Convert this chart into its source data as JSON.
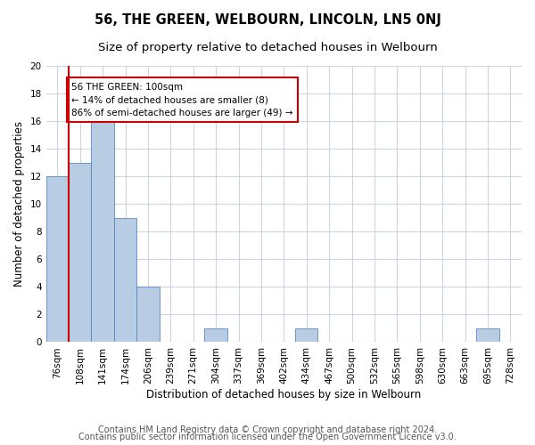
{
  "title": "56, THE GREEN, WELBOURN, LINCOLN, LN5 0NJ",
  "subtitle": "Size of property relative to detached houses in Welbourn",
  "xlabel": "Distribution of detached houses by size in Welbourn",
  "ylabel": "Number of detached properties",
  "bar_labels": [
    "76sqm",
    "108sqm",
    "141sqm",
    "174sqm",
    "206sqm",
    "239sqm",
    "271sqm",
    "304sqm",
    "337sqm",
    "369sqm",
    "402sqm",
    "434sqm",
    "467sqm",
    "500sqm",
    "532sqm",
    "565sqm",
    "598sqm",
    "630sqm",
    "663sqm",
    "695sqm",
    "728sqm"
  ],
  "bar_values": [
    12,
    13,
    16,
    9,
    4,
    0,
    0,
    1,
    0,
    0,
    0,
    1,
    0,
    0,
    0,
    0,
    0,
    0,
    0,
    1,
    0
  ],
  "bar_color": "#b8cce4",
  "bar_edge_color": "#5a8ac6",
  "annotation_text": "56 THE GREEN: 100sqm\n← 14% of detached houses are smaller (8)\n86% of semi-detached houses are larger (49) →",
  "annotation_box_color": "#ffffff",
  "annotation_box_edge": "#cc0000",
  "red_line_color": "#cc0000",
  "ylim": [
    0,
    20
  ],
  "yticks": [
    0,
    2,
    4,
    6,
    8,
    10,
    12,
    14,
    16,
    18,
    20
  ],
  "footer1": "Contains HM Land Registry data © Crown copyright and database right 2024.",
  "footer2": "Contains public sector information licensed under the Open Government Licence v3.0.",
  "bg_color": "#ffffff",
  "grid_color": "#cdd5e0",
  "title_fontsize": 10.5,
  "subtitle_fontsize": 9.5,
  "axis_label_fontsize": 8.5,
  "tick_fontsize": 7.5,
  "footer_fontsize": 7.0,
  "red_line_x": 0.5
}
